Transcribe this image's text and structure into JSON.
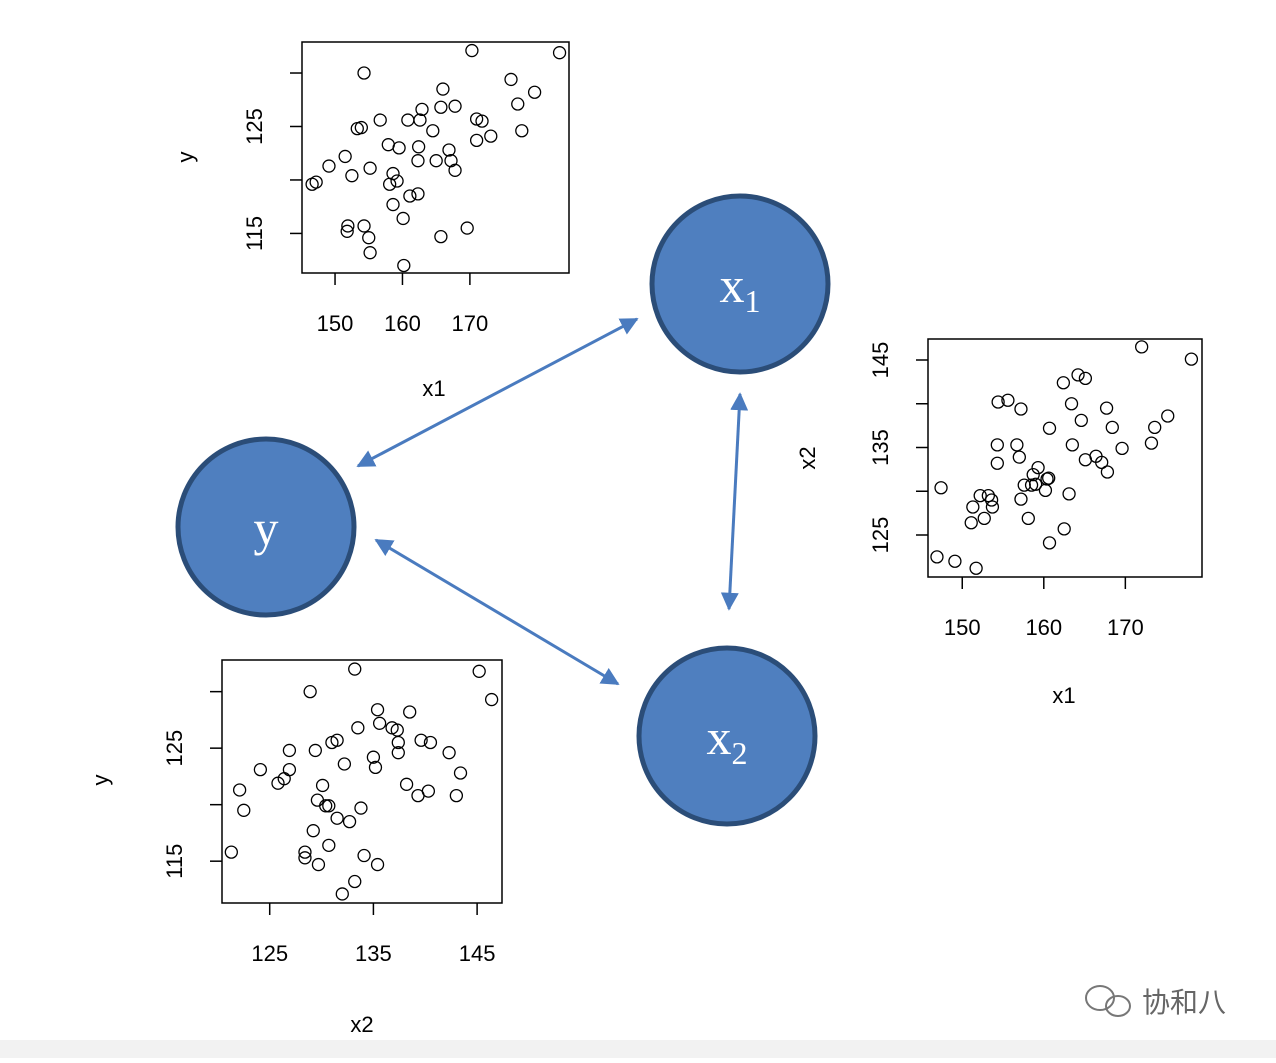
{
  "chart_data": [
    {
      "type": "scatter",
      "xlabel": "x1",
      "ylabel": "y",
      "xlim": [
        145.1,
        184.7
      ],
      "ylim": [
        111.3,
        132.9
      ],
      "xticks": [
        150,
        160,
        170
      ],
      "yticks": [
        115,
        125
      ],
      "yticks_minor": [
        120,
        130
      ],
      "x": [
        146.6,
        147.2,
        149.1,
        151.5,
        152.5,
        151.9,
        151.8,
        153.3,
        153.9,
        154.3,
        155.2,
        155.0,
        155.2,
        156.7,
        154.3,
        157.9,
        158.1,
        158.6,
        159.2,
        158.6,
        159.5,
        160.1,
        160.2,
        160.8,
        161.1,
        162.3,
        162.3,
        162.4,
        162.6,
        162.9,
        164.5,
        165.0,
        165.7,
        165.7,
        166.0,
        166.9,
        167.2,
        167.8,
        167.8,
        169.6,
        170.3,
        171.0,
        171.0,
        171.8,
        173.1,
        176.1,
        177.1,
        177.7,
        179.6,
        183.3
      ],
      "values": [
        119.6,
        119.8,
        121.3,
        122.2,
        120.4,
        115.7,
        115.2,
        124.8,
        124.9,
        130.0,
        121.1,
        114.6,
        113.2,
        125.6,
        115.7,
        123.3,
        119.6,
        120.6,
        119.9,
        117.7,
        123.0,
        116.4,
        112.0,
        125.6,
        118.5,
        118.7,
        121.8,
        123.1,
        125.6,
        126.6,
        124.6,
        121.8,
        114.7,
        126.8,
        128.5,
        122.8,
        121.8,
        120.9,
        126.9,
        115.5,
        132.1,
        125.7,
        123.7,
        125.5,
        124.1,
        129.4,
        127.1,
        124.6,
        128.2,
        131.9
      ]
    },
    {
      "type": "scatter",
      "xlabel": "x1",
      "ylabel": "x2",
      "xlim": [
        145.8,
        179.4
      ],
      "ylim": [
        120.2,
        147.4
      ],
      "xticks": [
        150,
        160,
        170
      ],
      "yticks": [
        125,
        135,
        145
      ],
      "yticks_minor": [
        130,
        140
      ],
      "x": [
        146.9,
        147.4,
        149.1,
        151.1,
        151.3,
        151.7,
        152.2,
        152.7,
        153.2,
        153.6,
        153.7,
        154.3,
        154.3,
        154.4,
        155.6,
        156.7,
        157.0,
        157.2,
        157.2,
        157.6,
        158.1,
        158.5,
        158.7,
        159.0,
        159.3,
        160.2,
        160.4,
        160.7,
        160.7,
        162.4,
        162.5,
        163.1,
        163.4,
        163.5,
        164.2,
        164.6,
        165.1,
        165.1,
        166.4,
        167.1,
        167.7,
        167.8,
        168.4,
        169.6,
        172.0,
        173.2,
        173.6,
        175.2,
        178.1,
        160.6
      ],
      "values": [
        122.5,
        130.4,
        122.0,
        126.4,
        128.2,
        121.2,
        129.5,
        126.9,
        129.5,
        129.0,
        128.2,
        135.3,
        133.2,
        140.2,
        140.4,
        135.3,
        133.9,
        139.4,
        129.1,
        130.7,
        126.9,
        130.7,
        131.9,
        130.8,
        132.7,
        130.1,
        131.4,
        137.2,
        124.1,
        142.4,
        125.7,
        129.7,
        140.0,
        135.3,
        143.3,
        138.1,
        142.9,
        133.6,
        134.0,
        133.3,
        139.5,
        132.2,
        137.3,
        134.9,
        146.5,
        135.5,
        137.3,
        138.6,
        145.1,
        131.5
      ]
    },
    {
      "type": "scatter",
      "xlabel": "x2",
      "ylabel": "y",
      "xlim": [
        120.4,
        147.4
      ],
      "ylim": [
        111.3,
        132.8
      ],
      "xticks": [
        125,
        135,
        145
      ],
      "yticks": [
        115,
        125
      ],
      "yticks_minor": [
        120,
        130
      ],
      "x": [
        121.3,
        122.1,
        122.5,
        124.1,
        125.8,
        126.4,
        126.9,
        126.9,
        128.4,
        128.4,
        128.9,
        129.2,
        129.4,
        129.6,
        129.7,
        130.1,
        130.4,
        130.7,
        130.7,
        131.0,
        131.5,
        131.5,
        132.0,
        132.2,
        132.7,
        133.2,
        133.2,
        133.5,
        133.8,
        134.1,
        135.0,
        135.2,
        135.4,
        135.4,
        135.6,
        136.8,
        137.3,
        137.4,
        137.4,
        138.2,
        138.5,
        139.3,
        139.6,
        140.3,
        140.5,
        142.3,
        143.0,
        143.4,
        145.2,
        146.4
      ],
      "values": [
        115.8,
        121.3,
        119.5,
        123.1,
        121.9,
        122.3,
        124.8,
        123.1,
        115.8,
        115.3,
        130.0,
        117.7,
        124.8,
        120.4,
        114.7,
        121.7,
        119.9,
        119.9,
        116.4,
        125.5,
        125.7,
        118.8,
        112.1,
        123.6,
        118.5,
        132.0,
        113.2,
        126.8,
        119.7,
        115.5,
        124.2,
        123.3,
        128.4,
        114.7,
        127.2,
        126.8,
        126.6,
        125.5,
        124.6,
        121.8,
        128.2,
        120.8,
        125.7,
        121.2,
        125.5,
        124.6,
        120.8,
        122.8,
        131.8,
        129.3
      ]
    }
  ],
  "nodes": [
    {
      "label": "y",
      "sub": null
    },
    {
      "label": "x",
      "sub": "1"
    },
    {
      "label": "x",
      "sub": "2"
    }
  ],
  "watermark": "协和八"
}
